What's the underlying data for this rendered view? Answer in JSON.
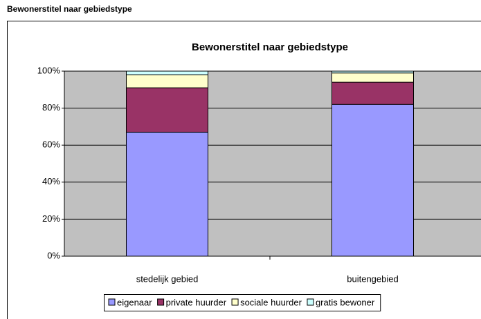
{
  "caption": "Bewonerstitel naar gebiedstype",
  "chart_data": {
    "type": "stacked_bar",
    "title": "Bewonerstitel naar gebiedstype",
    "categories": [
      "stedelijk gebied",
      "buitengebied"
    ],
    "series": [
      {
        "name": "eigenaar",
        "color": "#9999ff",
        "values": [
          67,
          82
        ]
      },
      {
        "name": "private huurder",
        "color": "#993366",
        "values": [
          24,
          12
        ]
      },
      {
        "name": "sociale huurder",
        "color": "#ffffcc",
        "values": [
          7,
          5
        ]
      },
      {
        "name": "gratis bewoner",
        "color": "#ccffff",
        "values": [
          2,
          1
        ]
      }
    ],
    "ylim": [
      0,
      100
    ],
    "yticks": [
      {
        "value": 0,
        "label": "0%"
      },
      {
        "value": 20,
        "label": "20%"
      },
      {
        "value": 40,
        "label": "40%"
      },
      {
        "value": 60,
        "label": "60%"
      },
      {
        "value": 80,
        "label": "80%"
      },
      {
        "value": 100,
        "label": "100%"
      }
    ],
    "grid": true,
    "legend": "bottom"
  }
}
